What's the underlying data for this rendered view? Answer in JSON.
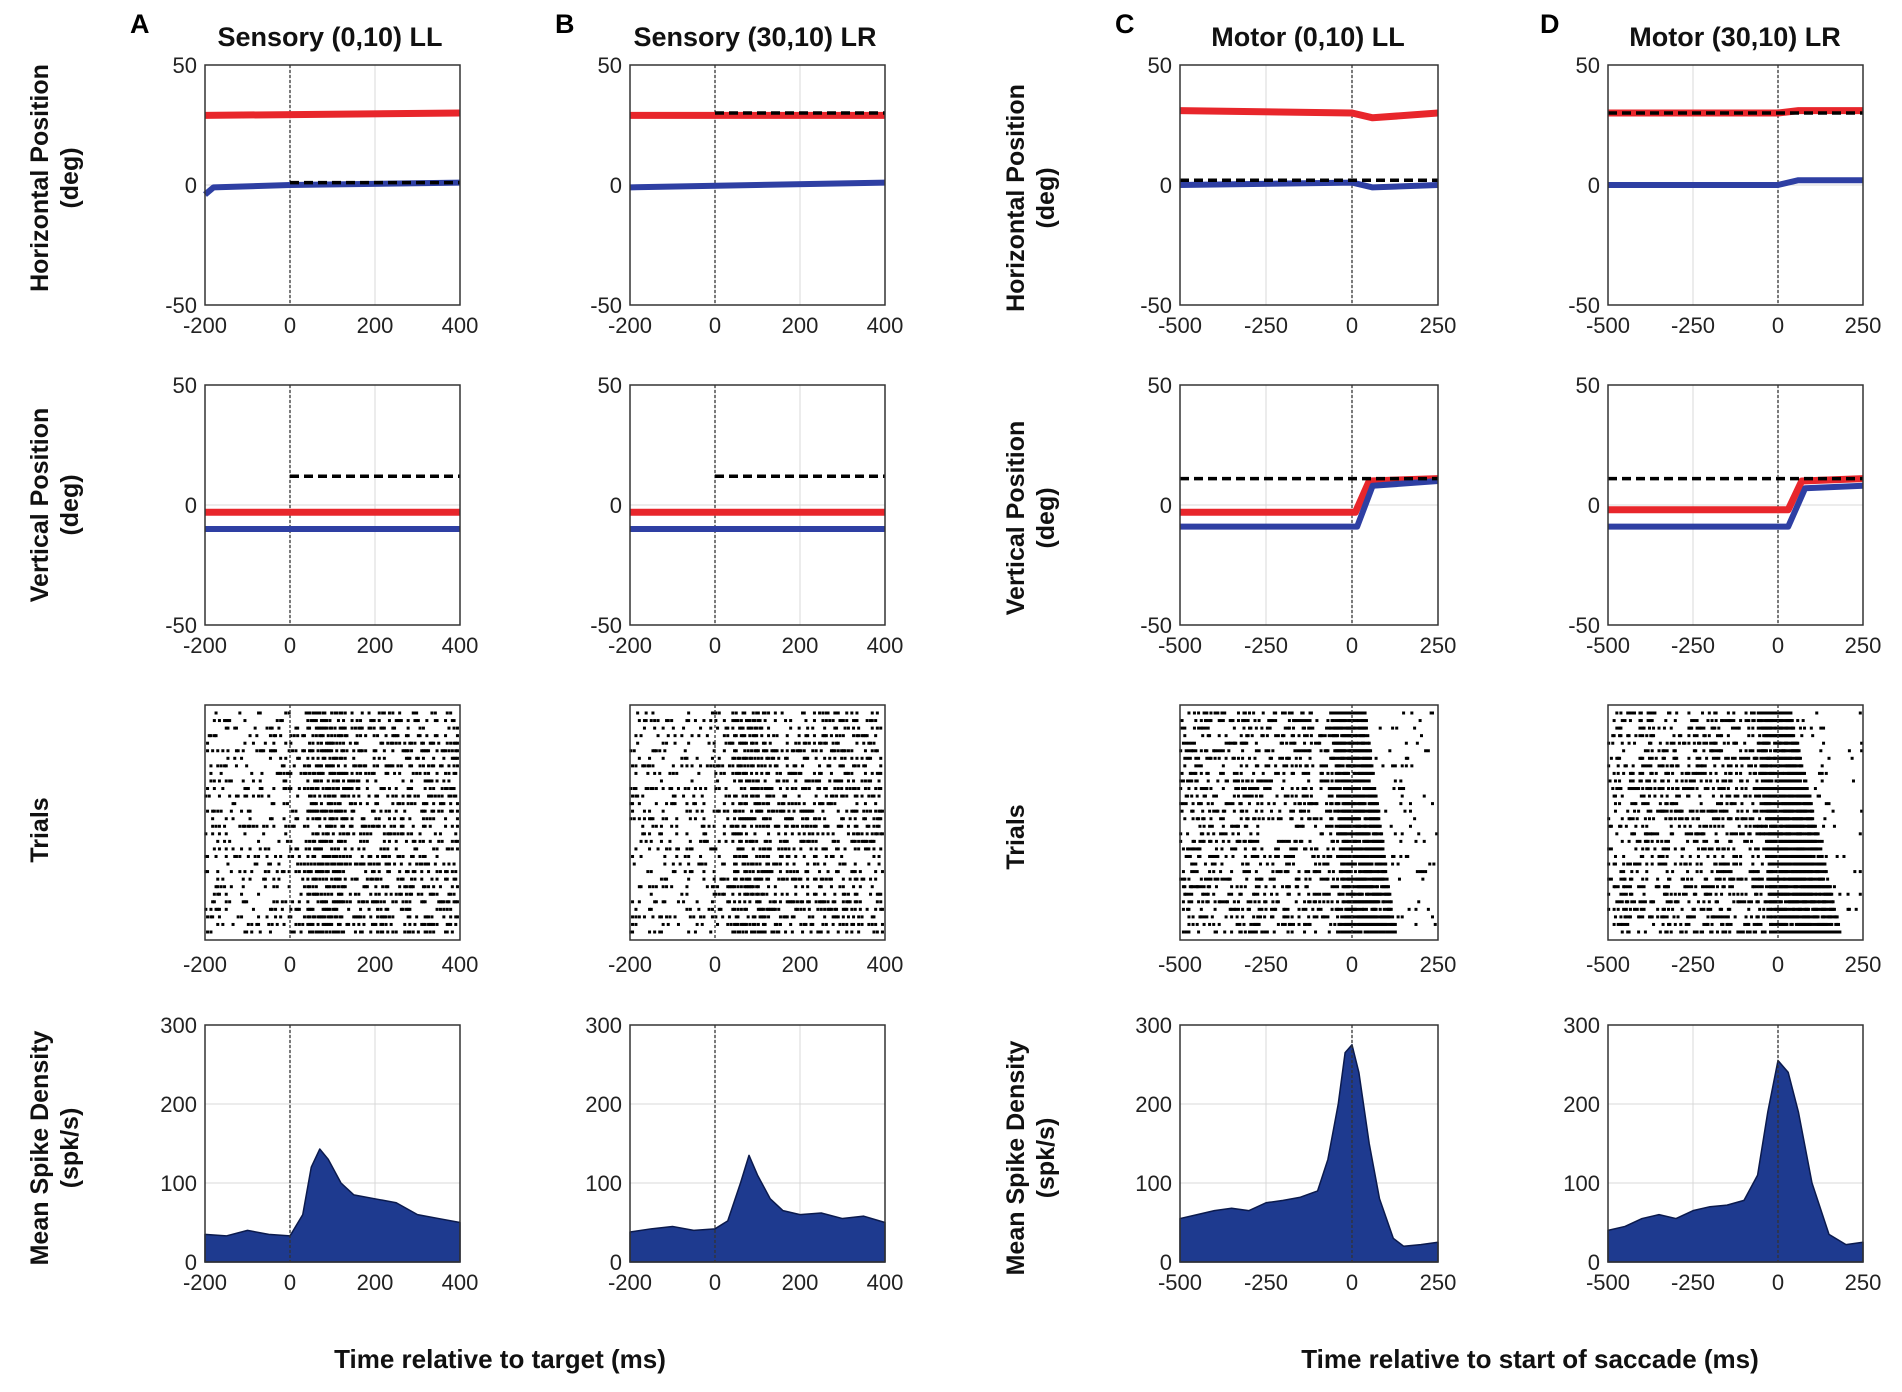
{
  "figure": {
    "columns": [
      {
        "letter": "A",
        "title": "Sensory (0,10) LL"
      },
      {
        "letter": "B",
        "title": "Sensory (30,10) LR"
      },
      {
        "letter": "C",
        "title": "Motor (0,10) LL"
      },
      {
        "letter": "D",
        "title": "Motor (30,10) LR"
      }
    ],
    "row_labels": {
      "horizontal": [
        "Horizontal Position",
        "(deg)"
      ],
      "vertical": [
        "Vertical Position",
        "(deg)"
      ],
      "trials": [
        "Trials"
      ],
      "sdf": [
        "Mean Spike Density",
        "(spk/s)"
      ]
    },
    "x_labels": {
      "sensory": "Time relative to target (ms)",
      "motor": "Time relative to start of saccade (ms)"
    },
    "colors": {
      "red_trace": "#e8262b",
      "blue_trace": "#2e3fa3",
      "target": "#000000",
      "fill": "#1e3a8f",
      "grid": "#d8d8d8"
    }
  },
  "chart_data": [
    {
      "type": "line",
      "panel": "A-horizontal",
      "title": "Sensory (0,10) LL",
      "ylabel": "Horizontal Position (deg)",
      "xlim": [
        -200,
        400
      ],
      "ylim": [
        -50,
        50
      ],
      "xticks": [
        -200,
        0,
        200,
        400
      ],
      "yticks": [
        -50,
        0,
        50
      ],
      "series": [
        {
          "name": "red eye trace",
          "x": [
            -200,
            400
          ],
          "y": [
            29,
            30
          ]
        },
        {
          "name": "blue eye trace",
          "x": [
            -200,
            -180,
            0,
            400
          ],
          "y": [
            -4,
            -1,
            0,
            1
          ]
        },
        {
          "name": "target",
          "style": "dashed",
          "x": [
            0,
            400
          ],
          "y": [
            1,
            1
          ]
        }
      ]
    },
    {
      "type": "line",
      "panel": "B-horizontal",
      "title": "Sensory (30,10) LR",
      "ylabel": "Horizontal Position (deg)",
      "xlim": [
        -200,
        400
      ],
      "ylim": [
        -50,
        50
      ],
      "xticks": [
        -200,
        0,
        200,
        400
      ],
      "yticks": [
        -50,
        0,
        50
      ],
      "series": [
        {
          "name": "red eye trace",
          "x": [
            -200,
            400
          ],
          "y": [
            29,
            29
          ]
        },
        {
          "name": "blue eye trace",
          "x": [
            -200,
            400
          ],
          "y": [
            -1,
            1
          ]
        },
        {
          "name": "target",
          "style": "dashed",
          "x": [
            0,
            400
          ],
          "y": [
            30,
            30
          ]
        }
      ]
    },
    {
      "type": "line",
      "panel": "C-horizontal",
      "title": "Motor (0,10) LL",
      "ylabel": "Horizontal Position (deg)",
      "xlim": [
        -500,
        250
      ],
      "ylim": [
        -50,
        50
      ],
      "xticks": [
        -500,
        -250,
        0,
        250
      ],
      "yticks": [
        -50,
        0,
        50
      ],
      "series": [
        {
          "name": "red eye trace",
          "x": [
            -500,
            0,
            60,
            250
          ],
          "y": [
            31,
            30,
            28,
            30
          ]
        },
        {
          "name": "blue eye trace",
          "x": [
            -500,
            0,
            60,
            250
          ],
          "y": [
            0,
            1,
            -1,
            0
          ]
        },
        {
          "name": "target",
          "style": "dashed",
          "x": [
            -500,
            250
          ],
          "y": [
            2,
            2
          ]
        }
      ]
    },
    {
      "type": "line",
      "panel": "D-horizontal",
      "title": "Motor (30,10) LR",
      "ylabel": "Horizontal Position (deg)",
      "xlim": [
        -500,
        250
      ],
      "ylim": [
        -50,
        50
      ],
      "xticks": [
        -500,
        -250,
        0,
        250
      ],
      "yticks": [
        -50,
        0,
        50
      ],
      "series": [
        {
          "name": "red eye trace",
          "x": [
            -500,
            0,
            60,
            250
          ],
          "y": [
            30,
            30,
            31,
            31
          ]
        },
        {
          "name": "blue eye trace",
          "x": [
            -500,
            0,
            60,
            250
          ],
          "y": [
            0,
            0,
            2,
            2
          ]
        },
        {
          "name": "target",
          "style": "dashed",
          "x": [
            -500,
            250
          ],
          "y": [
            30,
            30
          ]
        }
      ]
    },
    {
      "type": "line",
      "panel": "A-vertical",
      "ylabel": "Vertical Position (deg)",
      "xlim": [
        -200,
        400
      ],
      "ylim": [
        -50,
        50
      ],
      "xticks": [
        -200,
        0,
        200,
        400
      ],
      "yticks": [
        -50,
        0,
        50
      ],
      "series": [
        {
          "name": "red eye trace",
          "x": [
            -200,
            400
          ],
          "y": [
            -3,
            -3
          ]
        },
        {
          "name": "blue eye trace",
          "x": [
            -200,
            400
          ],
          "y": [
            -10,
            -10
          ]
        },
        {
          "name": "target",
          "style": "dashed",
          "x": [
            0,
            400
          ],
          "y": [
            12,
            12
          ]
        }
      ]
    },
    {
      "type": "line",
      "panel": "B-vertical",
      "ylabel": "Vertical Position (deg)",
      "xlim": [
        -200,
        400
      ],
      "ylim": [
        -50,
        50
      ],
      "xticks": [
        -200,
        0,
        200,
        400
      ],
      "yticks": [
        -50,
        0,
        50
      ],
      "series": [
        {
          "name": "red eye trace",
          "x": [
            -200,
            400
          ],
          "y": [
            -3,
            -3
          ]
        },
        {
          "name": "blue eye trace",
          "x": [
            -200,
            400
          ],
          "y": [
            -10,
            -10
          ]
        },
        {
          "name": "target",
          "style": "dashed",
          "x": [
            0,
            400
          ],
          "y": [
            12,
            12
          ]
        }
      ]
    },
    {
      "type": "line",
      "panel": "C-vertical",
      "ylabel": "Vertical Position (deg)",
      "xlim": [
        -500,
        250
      ],
      "ylim": [
        -50,
        50
      ],
      "xticks": [
        -500,
        -250,
        0,
        250
      ],
      "yticks": [
        -50,
        0,
        50
      ],
      "series": [
        {
          "name": "red eye trace",
          "x": [
            -500,
            10,
            50,
            250
          ],
          "y": [
            -3,
            -3,
            10,
            11
          ]
        },
        {
          "name": "blue eye trace",
          "x": [
            -500,
            15,
            60,
            250
          ],
          "y": [
            -9,
            -9,
            8,
            10
          ]
        },
        {
          "name": "target",
          "style": "dashed",
          "x": [
            -500,
            250
          ],
          "y": [
            11,
            11
          ]
        }
      ]
    },
    {
      "type": "line",
      "panel": "D-vertical",
      "ylabel": "Vertical Position (deg)",
      "xlim": [
        -500,
        250
      ],
      "ylim": [
        -50,
        50
      ],
      "xticks": [
        -500,
        -250,
        0,
        250
      ],
      "yticks": [
        -50,
        0,
        50
      ],
      "series": [
        {
          "name": "red eye trace",
          "x": [
            -500,
            30,
            70,
            250
          ],
          "y": [
            -2,
            -2,
            10,
            11
          ]
        },
        {
          "name": "blue eye trace",
          "x": [
            -500,
            30,
            80,
            250
          ],
          "y": [
            -9,
            -9,
            7,
            8
          ]
        },
        {
          "name": "target",
          "style": "dashed",
          "x": [
            -500,
            250
          ],
          "y": [
            11,
            11
          ]
        }
      ]
    },
    {
      "type": "scatter",
      "panel": "A-raster",
      "ylabel": "Trials",
      "description": "spike raster",
      "xlim": [
        -200,
        400
      ],
      "xticks": [
        -200,
        0,
        200,
        400
      ],
      "trials": 30
    },
    {
      "type": "scatter",
      "panel": "B-raster",
      "ylabel": "Trials",
      "description": "spike raster",
      "xlim": [
        -200,
        400
      ],
      "xticks": [
        -200,
        0,
        200,
        400
      ],
      "trials": 30
    },
    {
      "type": "scatter",
      "panel": "C-raster",
      "ylabel": "Trials",
      "description": "spike raster",
      "xlim": [
        -500,
        250
      ],
      "xticks": [
        -500,
        -250,
        0,
        250
      ],
      "trials": 30
    },
    {
      "type": "scatter",
      "panel": "D-raster",
      "ylabel": "Trials",
      "description": "spike raster",
      "xlim": [
        -500,
        250
      ],
      "xticks": [
        -500,
        -250,
        0,
        250
      ],
      "trials": 30
    },
    {
      "type": "area",
      "panel": "A-sdf",
      "ylabel": "Mean Spike Density (spk/s)",
      "xlabel": "Time relative to target (ms)",
      "xlim": [
        -200,
        400
      ],
      "ylim": [
        0,
        300
      ],
      "xticks": [
        -200,
        0,
        200,
        400
      ],
      "yticks": [
        0,
        100,
        200,
        300
      ],
      "x": [
        -200,
        -150,
        -100,
        -50,
        0,
        30,
        50,
        70,
        90,
        120,
        150,
        200,
        250,
        300,
        350,
        400
      ],
      "y": [
        35,
        33,
        40,
        35,
        33,
        60,
        120,
        143,
        130,
        100,
        85,
        80,
        75,
        60,
        55,
        50
      ]
    },
    {
      "type": "area",
      "panel": "B-sdf",
      "ylabel": "Mean Spike Density (spk/s)",
      "xlim": [
        -200,
        400
      ],
      "ylim": [
        0,
        300
      ],
      "xticks": [
        -200,
        0,
        200,
        400
      ],
      "yticks": [
        0,
        100,
        200,
        300
      ],
      "x": [
        -200,
        -150,
        -100,
        -50,
        0,
        30,
        60,
        80,
        100,
        130,
        160,
        200,
        250,
        300,
        350,
        400
      ],
      "y": [
        38,
        42,
        45,
        40,
        42,
        52,
        100,
        135,
        110,
        80,
        65,
        60,
        62,
        55,
        58,
        50
      ]
    },
    {
      "type": "area",
      "panel": "C-sdf",
      "ylabel": "Mean Spike Density (spk/s)",
      "xlim": [
        -500,
        250
      ],
      "ylim": [
        0,
        300
      ],
      "xticks": [
        -500,
        -250,
        0,
        250
      ],
      "yticks": [
        0,
        100,
        200,
        300
      ],
      "x": [
        -500,
        -450,
        -400,
        -350,
        -300,
        -250,
        -200,
        -150,
        -100,
        -70,
        -40,
        -20,
        0,
        20,
        50,
        80,
        120,
        150,
        200,
        250
      ],
      "y": [
        55,
        60,
        65,
        68,
        65,
        75,
        78,
        82,
        90,
        130,
        200,
        265,
        275,
        240,
        150,
        80,
        30,
        20,
        22,
        25
      ]
    },
    {
      "type": "area",
      "panel": "D-sdf",
      "ylabel": "Mean Spike Density (spk/s)",
      "xlim": [
        -500,
        250
      ],
      "ylim": [
        0,
        300
      ],
      "xticks": [
        -500,
        -250,
        0,
        250
      ],
      "yticks": [
        0,
        100,
        200,
        300
      ],
      "x": [
        -500,
        -450,
        -400,
        -350,
        -300,
        -250,
        -200,
        -150,
        -100,
        -60,
        -30,
        0,
        30,
        60,
        100,
        150,
        200,
        250
      ],
      "y": [
        40,
        45,
        55,
        60,
        55,
        65,
        70,
        72,
        78,
        110,
        190,
        255,
        240,
        190,
        100,
        35,
        22,
        25
      ]
    }
  ]
}
